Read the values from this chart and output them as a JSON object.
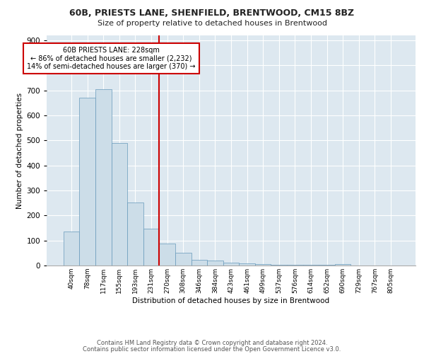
{
  "title1": "60B, PRIESTS LANE, SHENFIELD, BRENTWOOD, CM15 8BZ",
  "title2": "Size of property relative to detached houses in Brentwood",
  "xlabel": "Distribution of detached houses by size in Brentwood",
  "ylabel": "Number of detached properties",
  "bar_labels": [
    "40sqm",
    "78sqm",
    "117sqm",
    "155sqm",
    "193sqm",
    "231sqm",
    "270sqm",
    "308sqm",
    "346sqm",
    "384sqm",
    "423sqm",
    "461sqm",
    "499sqm",
    "537sqm",
    "576sqm",
    "614sqm",
    "652sqm",
    "690sqm",
    "729sqm",
    "767sqm",
    "805sqm"
  ],
  "bar_values": [
    135,
    670,
    705,
    490,
    253,
    148,
    88,
    50,
    24,
    20,
    10,
    9,
    5,
    3,
    3,
    2,
    2,
    7,
    0,
    0,
    0
  ],
  "bar_color": "#ccdde8",
  "bar_edge_color": "#6699bb",
  "vline_x_index": 5,
  "vline_color": "#cc0000",
  "annotation_text": "60B PRIESTS LANE: 228sqm\n← 86% of detached houses are smaller (2,232)\n14% of semi-detached houses are larger (370) →",
  "annotation_box_color": "#ffffff",
  "annotation_box_edge": "#cc0000",
  "ylim": [
    0,
    920
  ],
  "yticks": [
    0,
    100,
    200,
    300,
    400,
    500,
    600,
    700,
    800,
    900
  ],
  "footer1": "Contains HM Land Registry data © Crown copyright and database right 2024.",
  "footer2": "Contains public sector information licensed under the Open Government Licence v3.0.",
  "background_color": "#dde8f0"
}
